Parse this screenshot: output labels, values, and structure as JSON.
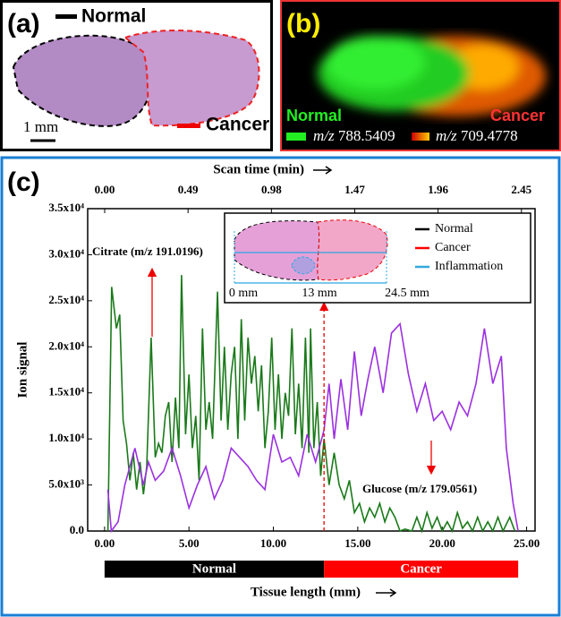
{
  "panel_a": {
    "label": "(a)",
    "normal": "Normal",
    "cancer": "Cancer",
    "scale": "1 mm"
  },
  "panel_b": {
    "label": "(b)",
    "normal": "Normal",
    "cancer": "Cancer",
    "mz_prefix": "m/z",
    "normal_mz": "788.5409",
    "cancer_mz": "709.4778"
  },
  "chart_data": {
    "type": "line",
    "label": "(c)",
    "xlabel": "Tissue length (mm)",
    "x2label": "Scan time (min)",
    "ylabel": "Ion signal",
    "xlim": [
      -1,
      25.5
    ],
    "xticks": [
      {
        "value": 0,
        "label": "0.00"
      },
      {
        "value": 5,
        "label": "5.00"
      },
      {
        "value": 10,
        "label": "10.00"
      },
      {
        "value": 15,
        "label": "15.00"
      },
      {
        "value": 20,
        "label": "20.00"
      },
      {
        "value": 25,
        "label": "25.00"
      }
    ],
    "x2lim": [
      -0.1,
      2.53
    ],
    "x2ticks": [
      {
        "value": 0,
        "label": "0.00"
      },
      {
        "value": 0.49,
        "label": "0.49"
      },
      {
        "value": 0.98,
        "label": "0.98"
      },
      {
        "value": 1.47,
        "label": "1.47"
      },
      {
        "value": 1.96,
        "label": "1.96"
      },
      {
        "value": 2.45,
        "label": "2.45"
      }
    ],
    "ylim": [
      0,
      35000
    ],
    "yticks": [
      {
        "value": 0,
        "label": "0.0"
      },
      {
        "value": 5000,
        "label": "5.0x10³"
      },
      {
        "value": 10000,
        "label": "1.0x10⁴"
      },
      {
        "value": 15000,
        "label": "1.5x10⁴"
      },
      {
        "value": 20000,
        "label": "2.0x10⁴"
      },
      {
        "value": 25000,
        "label": "2.5x10⁴"
      },
      {
        "value": 30000,
        "label": "3.0x10⁴"
      },
      {
        "value": 35000,
        "label": "3.5x10⁴"
      }
    ],
    "series": [
      {
        "name": "Citrate (m/z 191.0196)",
        "color": "#1a7a1a",
        "x": [
          0.2,
          0.42,
          0.7,
          0.9,
          1.1,
          1.3,
          1.5,
          1.7,
          1.9,
          2.1,
          2.3,
          2.5,
          2.76,
          3.0,
          3.2,
          3.4,
          3.6,
          3.8,
          4.0,
          4.2,
          4.4,
          4.56,
          4.8,
          5.0,
          5.2,
          5.4,
          5.6,
          5.8,
          6.0,
          6.2,
          6.4,
          6.69,
          6.9,
          7.1,
          7.3,
          7.5,
          7.7,
          7.9,
          8.1,
          8.3,
          8.5,
          8.7,
          8.9,
          9.1,
          9.3,
          9.5,
          9.7,
          9.9,
          10.1,
          10.3,
          10.5,
          10.7,
          10.9,
          11.1,
          11.3,
          11.5,
          11.7,
          11.9,
          12.1,
          12.2,
          12.4,
          12.6,
          12.8,
          13.0,
          13.3,
          13.6,
          13.9,
          14.2,
          14.5,
          14.8,
          15.1,
          15.4,
          15.7,
          16.0,
          16.3,
          16.6,
          16.9,
          17.2,
          17.5,
          17.8,
          18.2,
          18.5,
          18.8,
          19.1,
          19.4,
          19.7,
          20.0,
          20.3,
          20.6,
          20.9,
          21.2,
          21.5,
          21.8,
          22.1,
          22.4,
          22.7,
          23.0,
          23.3,
          23.6,
          24.0,
          24.3
        ],
        "values": [
          0,
          26500,
          22000,
          23500,
          12000,
          9500,
          5500,
          8500,
          4500,
          7500,
          4000,
          7000,
          21000,
          8000,
          9500,
          8500,
          12500,
          14000,
          7500,
          14500,
          9000,
          27800,
          10500,
          17000,
          9000,
          12500,
          5500,
          22000,
          11000,
          14000,
          10000,
          26000,
          12000,
          20000,
          11000,
          17000,
          20000,
          10000,
          23000,
          12000,
          21000,
          16000,
          19000,
          13000,
          18000,
          9000,
          13000,
          21000,
          11000,
          17000,
          10000,
          15000,
          12500,
          22000,
          10500,
          16000,
          9000,
          21000,
          8500,
          22000,
          9000,
          14000,
          6000,
          10000,
          5000,
          8500,
          5000,
          3500,
          5500,
          2000,
          3000,
          1000,
          2500,
          1500,
          3000,
          1000,
          2500,
          1500,
          0,
          200,
          0,
          1500,
          0,
          2000,
          300,
          1500,
          0,
          1000,
          0,
          2000,
          300,
          1000,
          0,
          1500,
          0,
          1000,
          0,
          1500,
          0,
          1500,
          0
        ]
      },
      {
        "name": "Glucose (m/z 179.0561)",
        "color": "#9b30e0",
        "x": [
          0.2,
          0.4,
          0.8,
          1.2,
          1.8,
          2.3,
          2.6,
          3.0,
          3.5,
          4.0,
          4.5,
          5.0,
          5.5,
          6.0,
          6.5,
          7.0,
          7.5,
          8.0,
          8.5,
          9.0,
          9.5,
          10.0,
          10.5,
          11.0,
          11.5,
          12.0,
          12.5,
          13.0,
          13.3,
          13.6,
          14.0,
          14.4,
          14.8,
          15.2,
          15.6,
          16.0,
          16.5,
          17.0,
          17.5,
          18.0,
          18.5,
          19.0,
          19.5,
          20.0,
          20.5,
          21.0,
          21.5,
          22.0,
          22.5,
          23.0,
          23.5,
          23.8,
          24.2,
          24.5
        ],
        "values": [
          4500,
          0,
          1000,
          5000,
          9000,
          5000,
          7500,
          5500,
          6500,
          9000,
          6000,
          2500,
          5000,
          7000,
          3500,
          5500,
          9000,
          8000,
          7000,
          5500,
          4500,
          10500,
          7500,
          8000,
          6000,
          10500,
          7500,
          11000,
          16000,
          10000,
          16500,
          11000,
          19500,
          12500,
          16500,
          20000,
          15000,
          21500,
          22500,
          17000,
          13000,
          16000,
          12000,
          13000,
          11000,
          14000,
          12500,
          16000,
          22000,
          16000,
          19000,
          9000,
          3000,
          0
        ]
      }
    ],
    "regions": [
      {
        "label": "Normal",
        "start": 0,
        "end": 13,
        "color": "#000000"
      },
      {
        "label": "Cancer",
        "start": 13,
        "end": 24.5,
        "color": "#ff0000"
      }
    ],
    "inset": {
      "legend": [
        {
          "label": "Normal",
          "color": "#000000"
        },
        {
          "label": "Cancer",
          "color": "#ff0000"
        },
        {
          "label": "Inflammation",
          "color": "#33aadd"
        }
      ],
      "scale_labels": [
        "0 mm",
        "13 mm",
        "24.5 mm"
      ]
    }
  }
}
